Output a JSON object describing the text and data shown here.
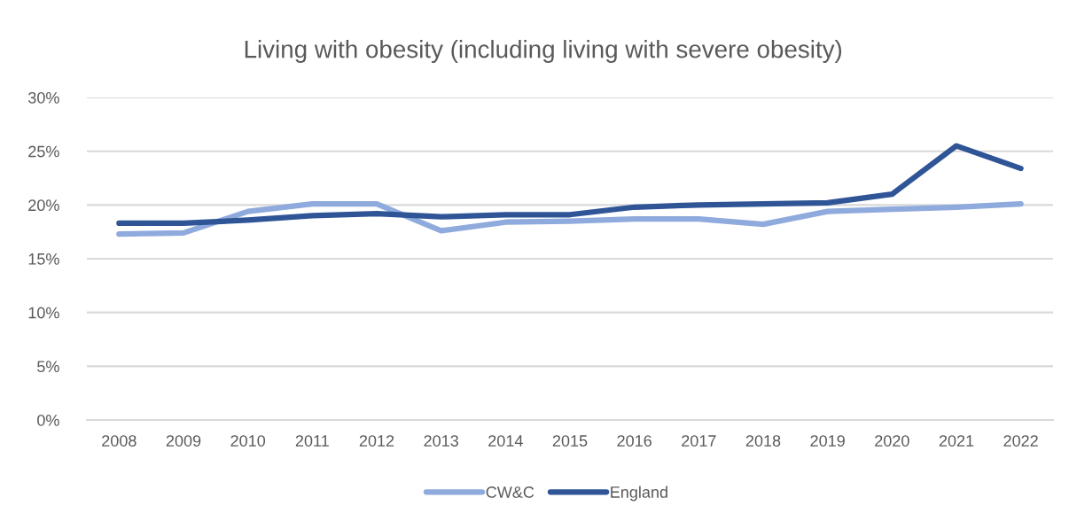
{
  "chart_data": {
    "type": "line",
    "title": "Living with obesity (including living with severe obesity)",
    "categories": [
      "2008",
      "2009",
      "2010",
      "2011",
      "2012",
      "2013",
      "2014",
      "2015",
      "2016",
      "2017",
      "2018",
      "2019",
      "2020",
      "2021",
      "2022"
    ],
    "series": [
      {
        "name": "CW&C",
        "color": "#8faadc",
        "values": [
          17.3,
          17.4,
          19.4,
          20.1,
          20.1,
          17.6,
          18.4,
          18.5,
          18.7,
          18.7,
          18.2,
          19.4,
          19.6,
          19.8,
          20.1
        ]
      },
      {
        "name": "England",
        "color": "#2f5597",
        "values": [
          18.3,
          18.3,
          18.6,
          19.0,
          19.2,
          18.9,
          19.1,
          19.1,
          19.8,
          20.0,
          20.1,
          20.2,
          21.0,
          25.5,
          23.4
        ]
      }
    ],
    "ylim": [
      0,
      30
    ],
    "yticks": [
      {
        "value": 0,
        "label": "0%"
      },
      {
        "value": 5,
        "label": "5%"
      },
      {
        "value": 10,
        "label": "10%"
      },
      {
        "value": 15,
        "label": "15%"
      },
      {
        "value": 20,
        "label": "20%"
      },
      {
        "value": 25,
        "label": "25%"
      },
      {
        "value": 30,
        "label": "30%"
      }
    ],
    "grid": "y",
    "legend": "bottom",
    "marker": "none",
    "line_style": "solid"
  }
}
